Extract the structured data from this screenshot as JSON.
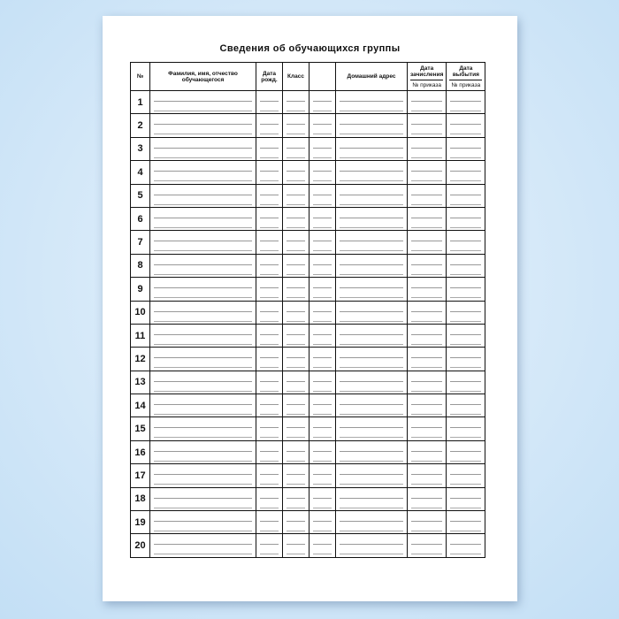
{
  "document": {
    "title": "Сведения об обучающихся группы",
    "columns": {
      "number": "№",
      "full_name": "Фамилия, имя, отчество обучающегося",
      "birth_date": "Дата рожд.",
      "class": "Класс",
      "blank": "",
      "address": "Домашний адрес",
      "enroll_date": "Дата зачисления",
      "enroll_order": "№ приказа",
      "leave_date": "Дата выбытия",
      "leave_order": "№ приказа"
    },
    "rows": [
      "1",
      "2",
      "3",
      "4",
      "5",
      "6",
      "7",
      "8",
      "9",
      "10",
      "11",
      "12",
      "13",
      "14",
      "15",
      "16",
      "17",
      "18",
      "19",
      "20"
    ]
  }
}
